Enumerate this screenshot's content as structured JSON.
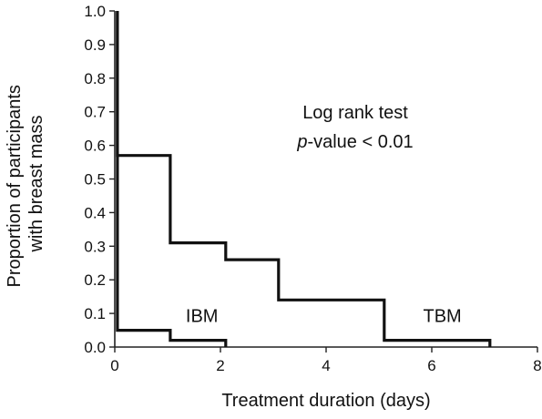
{
  "chart_data": {
    "type": "line",
    "step": true,
    "xlabel": "Treatment duration (days)",
    "ylabel_lines": [
      "Proportion of participants",
      "with breast mass"
    ],
    "xlim": [
      0,
      8
    ],
    "ylim": [
      0,
      1
    ],
    "x_ticks": [
      0,
      2,
      4,
      6,
      8
    ],
    "y_ticks": [
      0.0,
      0.1,
      0.2,
      0.3,
      0.4,
      0.5,
      0.6,
      0.7,
      0.8,
      0.9,
      1.0
    ],
    "y_tick_labels": [
      "0.0",
      "0.1",
      "0.2",
      "0.3",
      "0.4",
      "0.5",
      "0.6",
      "0.7",
      "0.8",
      "0.9",
      "1.0"
    ],
    "x_tick_labels": [
      "0",
      "2",
      "4",
      "6",
      "8"
    ],
    "grid": false,
    "annotation": {
      "line1": "Log rank test",
      "line2_italic": "p",
      "line2_rest": "-value < 0.01"
    },
    "series": [
      {
        "name": "IBM",
        "points": [
          [
            0.05,
            1.0
          ],
          [
            0.05,
            0.05
          ],
          [
            1.05,
            0.05
          ],
          [
            1.05,
            0.02
          ],
          [
            2.1,
            0.02
          ],
          [
            2.1,
            0.0
          ]
        ]
      },
      {
        "name": "TBM",
        "points": [
          [
            0.05,
            1.0
          ],
          [
            0.05,
            0.57
          ],
          [
            1.05,
            0.57
          ],
          [
            1.05,
            0.31
          ],
          [
            2.1,
            0.31
          ],
          [
            2.1,
            0.26
          ],
          [
            3.1,
            0.26
          ],
          [
            3.1,
            0.14
          ],
          [
            5.1,
            0.14
          ],
          [
            5.1,
            0.02
          ],
          [
            7.1,
            0.02
          ],
          [
            7.1,
            0.0
          ]
        ]
      }
    ],
    "series_label_anchor": [
      {
        "name": "IBM",
        "x": 1.65,
        "y": 0.075
      },
      {
        "name": "TBM",
        "x": 6.2,
        "y": 0.075
      }
    ]
  }
}
